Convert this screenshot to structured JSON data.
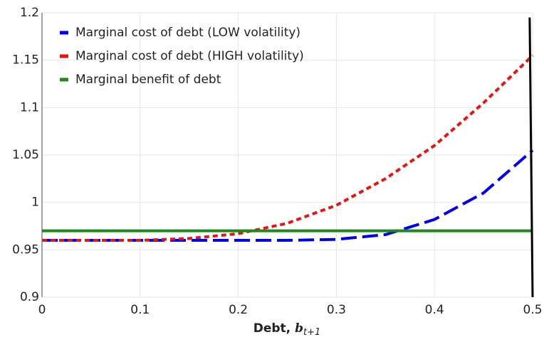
{
  "chart_data": {
    "type": "line",
    "x_label": {
      "text": "Debt, ",
      "math": "b",
      "sub": "t+1"
    },
    "xlim": [
      0,
      0.5
    ],
    "ylim": [
      0.9,
      1.2
    ],
    "xticks": [
      0,
      0.1,
      0.2,
      0.3,
      0.4,
      0.5
    ],
    "yticks": [
      0.9,
      0.95,
      1,
      1.05,
      1.1,
      1.15,
      1.2
    ],
    "grid": true,
    "legend": "top-left",
    "series": [
      {
        "name": "Marginal cost of debt (LOW volatility)",
        "color": "#0000ee",
        "dash": "dashed",
        "x": [
          0,
          0.05,
          0.1,
          0.15,
          0.2,
          0.25,
          0.3,
          0.35,
          0.4,
          0.45,
          0.5
        ],
        "values": [
          0.96,
          0.96,
          0.96,
          0.96,
          0.96,
          0.96,
          0.961,
          0.966,
          0.982,
          1.01,
          1.055
        ]
      },
      {
        "name": "Marginal cost of debt (HIGH volatility)",
        "color": "#ee1111",
        "dash": "dotted",
        "x": [
          0,
          0.05,
          0.1,
          0.15,
          0.2,
          0.25,
          0.3,
          0.35,
          0.4,
          0.45,
          0.5
        ],
        "values": [
          0.96,
          0.96,
          0.96,
          0.962,
          0.967,
          0.978,
          0.997,
          1.025,
          1.06,
          1.105,
          1.155
        ]
      },
      {
        "name": "Marginal benefit of debt",
        "color": "#1a8a1a",
        "dash": "solid",
        "x": [
          0,
          0.05,
          0.1,
          0.15,
          0.2,
          0.25,
          0.3,
          0.35,
          0.4,
          0.45,
          0.5
        ],
        "values": [
          0.97,
          0.97,
          0.97,
          0.97,
          0.97,
          0.97,
          0.97,
          0.97,
          0.97,
          0.97,
          0.97
        ]
      },
      {
        "color": "#000000",
        "dash": "solid",
        "x": [
          0.497,
          0.5
        ],
        "values": [
          1.195,
          0.9
        ]
      }
    ]
  }
}
